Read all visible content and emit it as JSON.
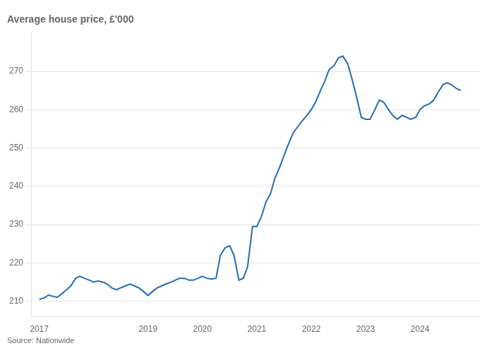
{
  "chart_data": {
    "type": "line",
    "title": "Average house price, £'000",
    "annotations": [
      "Source: Nationwide"
    ],
    "color": "#1f6db5",
    "grid": "y",
    "xlim": [
      2016.85,
      2025.1
    ],
    "xticks": [
      2017,
      2019,
      2020,
      2021,
      2022,
      2023,
      2024
    ],
    "ylim": [
      206,
      280
    ],
    "yticks": [
      210,
      220,
      230,
      240,
      250,
      260,
      270
    ],
    "x": [
      2017.0,
      2017.08,
      2017.17,
      2017.25,
      2017.33,
      2017.42,
      2017.5,
      2017.58,
      2017.67,
      2017.75,
      2017.83,
      2017.92,
      2018.0,
      2018.08,
      2018.17,
      2018.25,
      2018.33,
      2018.42,
      2018.5,
      2018.58,
      2018.67,
      2018.75,
      2018.83,
      2018.92,
      2019.0,
      2019.08,
      2019.17,
      2019.25,
      2019.33,
      2019.42,
      2019.5,
      2019.58,
      2019.67,
      2019.75,
      2019.83,
      2019.92,
      2020.0,
      2020.08,
      2020.17,
      2020.25,
      2020.33,
      2020.42,
      2020.5,
      2020.58,
      2020.67,
      2020.75,
      2020.83,
      2020.92,
      2021.0,
      2021.08,
      2021.17,
      2021.25,
      2021.33,
      2021.42,
      2021.5,
      2021.58,
      2021.67,
      2021.75,
      2021.83,
      2021.92,
      2022.0,
      2022.08,
      2022.17,
      2022.25,
      2022.33,
      2022.42,
      2022.5,
      2022.58,
      2022.67,
      2022.75,
      2022.83,
      2022.92,
      2023.0,
      2023.08,
      2023.17,
      2023.25,
      2023.33,
      2023.42,
      2023.5,
      2023.58,
      2023.67,
      2023.75,
      2023.83,
      2023.92,
      2024.0,
      2024.08,
      2024.17,
      2024.25,
      2024.33,
      2024.42,
      2024.5,
      2024.58,
      2024.67,
      2024.75
    ],
    "values": [
      210.5,
      210.8,
      211.6,
      211.3,
      211.0,
      212.0,
      213.0,
      214.0,
      216.0,
      216.5,
      216.0,
      215.5,
      215.0,
      215.3,
      215.0,
      214.5,
      213.5,
      213.0,
      213.5,
      214.0,
      214.5,
      214.0,
      213.5,
      212.5,
      211.5,
      212.5,
      213.5,
      214.0,
      214.5,
      215.0,
      215.5,
      216.0,
      216.0,
      215.5,
      215.5,
      216.0,
      216.5,
      216.0,
      215.8,
      216.0,
      222.0,
      224.0,
      224.5,
      222.0,
      215.5,
      216.0,
      219.0,
      229.5,
      229.5,
      232.0,
      236.0,
      238.0,
      242.0,
      245.0,
      248.0,
      251.0,
      254.0,
      255.5,
      257.0,
      258.5,
      260.0,
      262.0,
      265.0,
      267.5,
      270.5,
      271.5,
      273.5,
      274.0,
      272.0,
      268.0,
      263.5,
      258.0,
      257.5,
      257.5,
      260.0,
      262.5,
      262.0,
      260.0,
      258.5,
      257.5,
      258.5,
      258.0,
      257.5,
      258.0,
      260.0,
      261.0,
      261.5,
      262.5,
      264.5,
      266.5,
      267.0,
      266.5,
      265.5,
      265.0
    ]
  }
}
